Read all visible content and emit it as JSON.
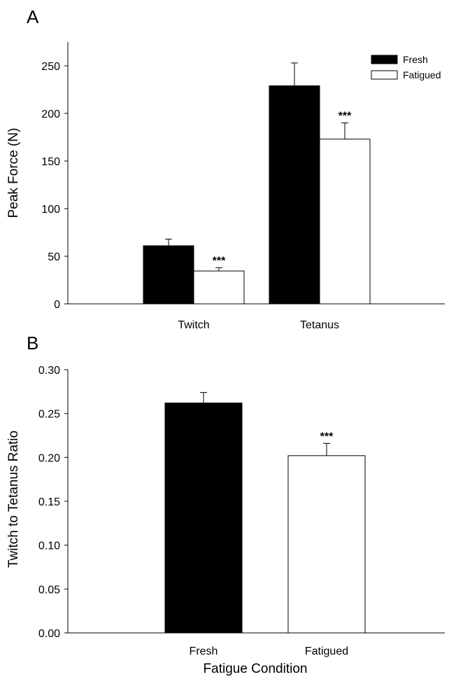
{
  "chart_data": [
    {
      "panel": "A",
      "type": "bar",
      "categories": [
        "Twitch",
        "Tetanus"
      ],
      "series": [
        {
          "name": "Fresh",
          "values": [
            61,
            229
          ],
          "errors": [
            7,
            24
          ],
          "color": "#000000"
        },
        {
          "name": "Fatigued",
          "values": [
            34.5,
            173
          ],
          "errors": [
            3.5,
            17
          ],
          "color": "#ffffff",
          "significance": [
            "***",
            "***"
          ]
        }
      ],
      "xlabel": "",
      "ylabel": "Peak Force (N)",
      "ylim": [
        0,
        275
      ],
      "yticks": [
        "0",
        "50",
        "100",
        "150",
        "200",
        "250"
      ],
      "legend": "top-right",
      "grid": false
    },
    {
      "panel": "B",
      "type": "bar",
      "categories": [
        "Fresh",
        "Fatigued"
      ],
      "values": [
        0.262,
        0.202
      ],
      "errors": [
        0.012,
        0.014
      ],
      "colors": [
        "#000000",
        "#ffffff"
      ],
      "significance": [
        "",
        "***"
      ],
      "xlabel": "Fatigue Condition",
      "ylabel": "Twitch to Tetanus Ratio",
      "ylim": [
        0,
        0.3
      ],
      "yticks": [
        "0.00",
        "0.05",
        "0.10",
        "0.15",
        "0.20",
        "0.25",
        "0.30"
      ],
      "grid": false
    }
  ]
}
